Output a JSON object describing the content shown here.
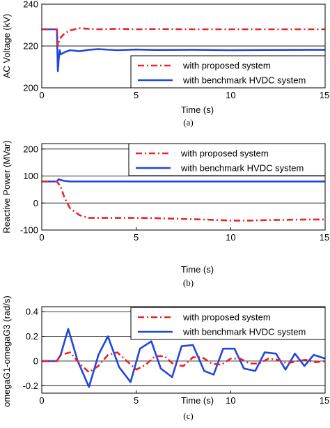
{
  "chart_data": [
    {
      "type": "line",
      "panel_label": "(a)",
      "xlabel": "Time (s)",
      "ylabel": "AC Voltage (kV)",
      "xlim": [
        0,
        15
      ],
      "ylim": [
        200,
        240
      ],
      "xticks": [
        "0",
        "5",
        "10",
        "15"
      ],
      "yticks": [
        "200",
        "220",
        "240"
      ],
      "grid": "horizontal",
      "legend_position": "bottom-right",
      "series": [
        {
          "name": "with proposed system",
          "color": "#e8232a",
          "style": "dash-dot",
          "x": [
            0,
            0.8,
            0.85,
            0.9,
            1.0,
            1.2,
            1.5,
            2.0,
            2.5,
            3.0,
            4.0,
            5.0,
            6.0,
            8.0,
            10.0,
            12.0,
            15.0
          ],
          "y": [
            228,
            228,
            220,
            222,
            224,
            226,
            227.5,
            228.5,
            228.2,
            228,
            228.2,
            228,
            228.1,
            228,
            228,
            228,
            228
          ]
        },
        {
          "name": "with benchmark HVDC system",
          "color": "#1f47e0",
          "style": "solid",
          "x": [
            0,
            0.8,
            0.85,
            0.9,
            0.95,
            1.0,
            1.2,
            1.5,
            2.0,
            2.5,
            3.0,
            4.0,
            5.0,
            6.0,
            8.0,
            10.0,
            12.0,
            15.0
          ],
          "y": [
            228,
            228,
            208,
            214,
            218,
            216,
            217,
            218,
            217.5,
            218.2,
            218.5,
            218,
            218.3,
            218.1,
            218.2,
            218,
            218.1,
            218.2
          ]
        }
      ]
    },
    {
      "type": "line",
      "panel_label": "(b)",
      "xlabel": "Time (s)",
      "ylabel": "Reactive Power (MVar)",
      "xlim": [
        0,
        15
      ],
      "ylim": [
        -100,
        220
      ],
      "xticks": [
        "0",
        "5",
        "10",
        "15"
      ],
      "yticks": [
        "-100",
        "0",
        "100",
        "200"
      ],
      "grid": "horizontal",
      "legend_position": "top-right",
      "series": [
        {
          "name": "with proposed system",
          "color": "#e8232a",
          "style": "dash-dot",
          "x": [
            0,
            0.8,
            1.0,
            1.2,
            1.5,
            2.0,
            2.5,
            3.0,
            4.0,
            5.0,
            6.0,
            7.0,
            8.0,
            9.0,
            10.0,
            11.0,
            12.0,
            13.0,
            14.0,
            15.0
          ],
          "y": [
            80,
            80,
            60,
            20,
            -20,
            -45,
            -55,
            -55,
            -55,
            -55,
            -56,
            -58,
            -60,
            -62,
            -65,
            -65,
            -63,
            -62,
            -61,
            -61
          ]
        },
        {
          "name": "with benchmark HVDC system",
          "color": "#1f47e0",
          "style": "solid",
          "x": [
            0,
            0.8,
            0.9,
            1.0,
            1.2,
            1.5,
            2.0,
            3.0,
            5.0,
            8.0,
            10.0,
            12.0,
            15.0
          ],
          "y": [
            80,
            80,
            88,
            85,
            82,
            80,
            80,
            80,
            80,
            80,
            80,
            80,
            80
          ]
        }
      ]
    },
    {
      "type": "line",
      "panel_label": "(c)",
      "xlabel": "Time (s)",
      "ylabel": "omegaG1-omegaG3 (rad/s)",
      "xlim": [
        0,
        15
      ],
      "ylim": [
        -0.26,
        0.44
      ],
      "xticks": [
        "0",
        "5",
        "10",
        "15"
      ],
      "yticks": [
        "-0.2",
        "0",
        "0.2",
        "0.4"
      ],
      "grid": "horizontal",
      "legend_position": "top-right",
      "series": [
        {
          "name": "with proposed system",
          "color": "#e8232a",
          "style": "dash-dot",
          "x": [
            0,
            0.8,
            1.0,
            1.5,
            2.0,
            2.5,
            3.0,
            3.5,
            4.0,
            4.5,
            5.0,
            5.5,
            6.0,
            6.5,
            7.0,
            7.5,
            8.0,
            8.5,
            9.0,
            9.5,
            10.0,
            10.5,
            11.0,
            11.5,
            12.0,
            12.5,
            13.0,
            13.5,
            14.0,
            14.5,
            15.0
          ],
          "y": [
            0,
            0,
            0.05,
            0.07,
            -0.02,
            -0.09,
            -0.04,
            0.05,
            0.07,
            0.0,
            -0.07,
            -0.03,
            0.04,
            0.04,
            -0.03,
            -0.04,
            0.03,
            0.03,
            -0.02,
            -0.03,
            0.02,
            0.02,
            -0.02,
            -0.02,
            0.02,
            0.01,
            -0.02,
            0.0,
            0.01,
            -0.01,
            0.0
          ]
        },
        {
          "name": "with benchmark HVDC system",
          "color": "#1f47e0",
          "style": "solid",
          "x": [
            0,
            0.8,
            1.0,
            1.4,
            1.9,
            2.5,
            3.0,
            3.5,
            4.1,
            4.7,
            5.2,
            5.8,
            6.3,
            6.9,
            7.4,
            8.0,
            8.6,
            9.1,
            9.6,
            10.2,
            10.7,
            11.3,
            11.8,
            12.4,
            12.9,
            13.4,
            13.9,
            14.4,
            15.0
          ],
          "y": [
            0,
            0,
            0.05,
            0.26,
            0.0,
            -0.21,
            0.05,
            0.2,
            -0.05,
            -0.17,
            0.1,
            0.16,
            -0.06,
            -0.13,
            0.12,
            0.13,
            -0.08,
            -0.11,
            0.1,
            0.1,
            -0.06,
            -0.08,
            0.07,
            0.06,
            -0.07,
            0.06,
            -0.04,
            0.05,
            0.02
          ]
        }
      ]
    }
  ]
}
